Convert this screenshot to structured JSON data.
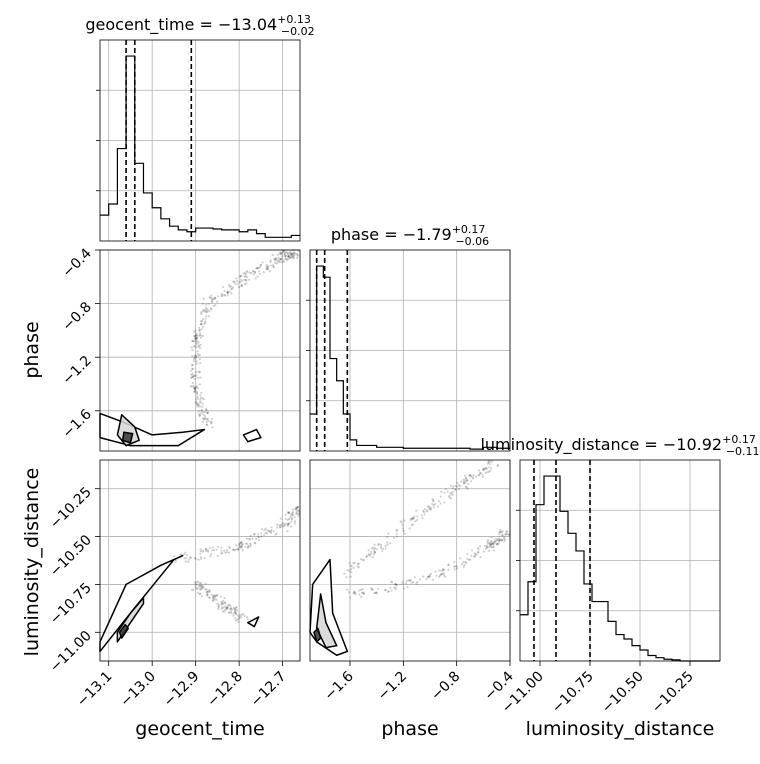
{
  "chart_data": [
    {
      "type": "histogram",
      "panel": "geocent_time-marginal",
      "title_param": "geocent_time",
      "title_median": "−13.04",
      "title_plus": "+0.13",
      "title_minus": "−0.02",
      "xlim": [
        -13.12,
        -12.66
      ],
      "quantiles": [
        -13.06,
        -13.04,
        -12.91
      ],
      "bin_edges": [
        -13.12,
        -13.1,
        -13.08,
        -13.06,
        -13.04,
        -13.02,
        -13.0,
        -12.98,
        -12.96,
        -12.94,
        -12.92,
        -12.9,
        -12.88,
        -12.86,
        -12.84,
        -12.82,
        -12.8,
        -12.78,
        -12.76,
        -12.74,
        -12.72,
        -12.7,
        -12.68,
        -12.66
      ],
      "counts": [
        0.14,
        0.2,
        0.5,
        1.0,
        0.42,
        0.26,
        0.18,
        0.12,
        0.08,
        0.06,
        0.05,
        0.07,
        0.07,
        0.065,
        0.06,
        0.06,
        0.05,
        0.06,
        0.04,
        0.02,
        0.02,
        0.02,
        0.03
      ]
    },
    {
      "type": "histogram",
      "panel": "phase-marginal",
      "title_param": "phase",
      "title_median": "−1.79",
      "title_plus": "+0.17",
      "title_minus": "−0.06",
      "xlim": [
        -1.9,
        -0.4
      ],
      "quantiles": [
        -1.85,
        -1.79,
        -1.62
      ],
      "bin_edges": [
        -1.9,
        -1.85,
        -1.8,
        -1.75,
        -1.7,
        -1.65,
        -1.6,
        -1.55,
        -1.5,
        -1.4,
        -1.3,
        -1.2,
        -1.1,
        -1.0,
        -0.9,
        -0.8,
        -0.7,
        -0.6,
        -0.5,
        -0.4
      ],
      "counts": [
        0.2,
        1.0,
        0.94,
        0.5,
        0.38,
        0.2,
        0.06,
        0.03,
        0.03,
        0.02,
        0.02,
        0.015,
        0.015,
        0.015,
        0.015,
        0.015,
        0.01,
        0.02,
        0.015
      ]
    },
    {
      "type": "histogram",
      "panel": "luminosity_distance-marginal",
      "title_param": "luminosity_distance",
      "title_median": "−10.92",
      "title_plus": "+0.17",
      "title_minus": "−0.11",
      "xlim": [
        -11.1,
        -10.1
      ],
      "quantiles": [
        -11.03,
        -10.92,
        -10.75
      ],
      "bin_edges": [
        -11.1,
        -11.06,
        -11.02,
        -10.98,
        -10.94,
        -10.9,
        -10.86,
        -10.82,
        -10.78,
        -10.74,
        -10.7,
        -10.66,
        -10.62,
        -10.58,
        -10.54,
        -10.5,
        -10.46,
        -10.42,
        -10.38,
        -10.34,
        -10.3,
        -10.26,
        -10.22,
        -10.18,
        -10.14,
        -10.1
      ],
      "counts": [
        0.21,
        0.36,
        0.71,
        0.84,
        0.84,
        0.68,
        0.58,
        0.5,
        0.35,
        0.27,
        0.27,
        0.18,
        0.12,
        0.1,
        0.07,
        0.05,
        0.025,
        0.015,
        0.008,
        0.005,
        0.0,
        0.0,
        0.0,
        0.0,
        0.0
      ]
    },
    {
      "type": "scatter",
      "panel": "phase-vs-geocent_time",
      "x_param": "geocent_time",
      "y_param": "phase",
      "xlim": [
        -13.12,
        -12.66
      ],
      "ylim": [
        -1.9,
        -0.4
      ],
      "path": [
        [
          -12.87,
          -1.7
        ],
        [
          -12.9,
          -1.45
        ],
        [
          -12.9,
          -1.1
        ],
        [
          -12.87,
          -0.8
        ],
        [
          -12.78,
          -0.6
        ],
        [
          -12.7,
          -0.45
        ],
        [
          -12.67,
          -0.42
        ]
      ],
      "contours": [
        {
          "level": "outer",
          "points": [
            [
              -13.12,
              -1.62
            ],
            [
              -13.07,
              -1.68
            ],
            [
              -13.0,
              -1.78
            ],
            [
              -12.93,
              -1.76
            ],
            [
              -12.88,
              -1.74
            ],
            [
              -12.94,
              -1.86
            ],
            [
              -13.05,
              -1.86
            ],
            [
              -13.12,
              -1.8
            ]
          ]
        },
        {
          "level": "middle",
          "points": [
            [
              -13.07,
              -1.63
            ],
            [
              -13.04,
              -1.72
            ],
            [
              -13.03,
              -1.82
            ],
            [
              -13.06,
              -1.86
            ],
            [
              -13.08,
              -1.78
            ]
          ]
        },
        {
          "level": "inner",
          "points": [
            [
              -13.065,
              -1.76
            ],
            [
              -13.045,
              -1.77
            ],
            [
              -13.05,
              -1.84
            ],
            [
              -13.068,
              -1.82
            ]
          ]
        },
        {
          "level": "island",
          "points": [
            [
              -12.79,
              -1.78
            ],
            [
              -12.76,
              -1.74
            ],
            [
              -12.75,
              -1.8
            ],
            [
              -12.78,
              -1.83
            ]
          ]
        }
      ]
    },
    {
      "type": "scatter",
      "panel": "luminosity_distance-vs-geocent_time",
      "x_param": "geocent_time",
      "y_param": "luminosity_distance",
      "xlim": [
        -13.12,
        -12.66
      ],
      "ylim": [
        -11.15,
        -10.1
      ],
      "path": [
        [
          -12.9,
          -10.75
        ],
        [
          -12.84,
          -10.85
        ],
        [
          -12.79,
          -10.93
        ]
      ],
      "path2": [
        [
          -12.95,
          -10.62
        ],
        [
          -12.8,
          -10.55
        ],
        [
          -12.7,
          -10.45
        ],
        [
          -12.66,
          -10.35
        ]
      ],
      "contours": [
        {
          "level": "outer",
          "points": [
            [
              -13.12,
              -11.1
            ],
            [
              -13.05,
              -10.9
            ],
            [
              -12.95,
              -10.62
            ],
            [
              -12.93,
              -10.6
            ],
            [
              -12.98,
              -10.65
            ],
            [
              -13.06,
              -10.75
            ],
            [
              -13.1,
              -10.95
            ],
            [
              -13.12,
              -11.05
            ]
          ]
        },
        {
          "level": "middle",
          "points": [
            [
              -13.08,
              -11.05
            ],
            [
              -13.02,
              -10.85
            ],
            [
              -13.02,
              -10.82
            ],
            [
              -13.05,
              -10.9
            ],
            [
              -13.08,
              -11.0
            ]
          ]
        },
        {
          "level": "inner",
          "points": [
            [
              -13.07,
              -11.03
            ],
            [
              -13.055,
              -10.98
            ],
            [
              -13.062,
              -10.96
            ],
            [
              -13.075,
              -11.0
            ]
          ]
        },
        {
          "level": "island",
          "points": [
            [
              -12.78,
              -10.95
            ],
            [
              -12.755,
              -10.92
            ],
            [
              -12.765,
              -10.97
            ]
          ]
        }
      ]
    },
    {
      "type": "scatter",
      "panel": "luminosity_distance-vs-phase",
      "x_param": "phase",
      "y_param": "luminosity_distance",
      "xlim": [
        -1.9,
        -0.4
      ],
      "ylim": [
        -11.15,
        -10.1
      ],
      "path": [
        [
          -1.6,
          -10.8
        ],
        [
          -1.0,
          -10.72
        ],
        [
          -0.55,
          -10.55
        ],
        [
          -0.42,
          -10.48
        ]
      ],
      "path2": [
        [
          -1.65,
          -10.7
        ],
        [
          -1.2,
          -10.45
        ],
        [
          -0.8,
          -10.25
        ],
        [
          -0.5,
          -10.1
        ]
      ],
      "contours": [
        {
          "level": "outer",
          "points": [
            [
              -1.9,
              -11.0
            ],
            [
              -1.88,
              -10.75
            ],
            [
              -1.75,
              -10.62
            ],
            [
              -1.73,
              -10.9
            ],
            [
              -1.62,
              -11.1
            ],
            [
              -1.7,
              -11.12
            ],
            [
              -1.85,
              -11.05
            ]
          ]
        },
        {
          "level": "middle",
          "points": [
            [
              -1.85,
              -10.98
            ],
            [
              -1.82,
              -10.8
            ],
            [
              -1.78,
              -10.95
            ],
            [
              -1.7,
              -11.07
            ],
            [
              -1.78,
              -11.08
            ]
          ]
        },
        {
          "level": "inner",
          "points": [
            [
              -1.87,
              -11.0
            ],
            [
              -1.84,
              -10.98
            ],
            [
              -1.82,
              -11.03
            ],
            [
              -1.85,
              -11.05
            ]
          ]
        }
      ]
    }
  ],
  "axes": {
    "x_labels": {
      "geocent_time": "geocent_time",
      "phase": "phase",
      "luminosity_distance": "luminosity_distance"
    },
    "y_labels": {
      "phase": "phase",
      "luminosity_distance": "luminosity_distance"
    },
    "x_ticks": {
      "geocent_time": [
        "−13.1",
        "−13.0",
        "−12.9",
        "−12.8",
        "−12.7"
      ],
      "phase": [
        "−1.6",
        "−1.2",
        "−0.8",
        "−0.4"
      ],
      "luminosity_distance": [
        "−11.00",
        "−10.75",
        "−10.50",
        "−10.25"
      ]
    },
    "x_tick_values": {
      "geocent_time": [
        -13.1,
        -13.0,
        -12.9,
        -12.8,
        -12.7
      ],
      "phase": [
        -1.6,
        -1.2,
        -0.8,
        -0.4
      ],
      "luminosity_distance": [
        -11.0,
        -10.75,
        -10.5,
        -10.25
      ]
    },
    "y_ticks": {
      "phase": [
        "−0.4",
        "−0.8",
        "−1.2",
        "−1.6"
      ],
      "luminosity_distance": [
        "−10.25",
        "−10.50",
        "−10.75",
        "−11.00"
      ]
    },
    "y_tick_values": {
      "phase": [
        -0.4,
        -0.8,
        -1.2,
        -1.6
      ],
      "luminosity_distance": [
        -10.25,
        -10.5,
        -10.75,
        -11.0
      ]
    },
    "grid": true
  }
}
